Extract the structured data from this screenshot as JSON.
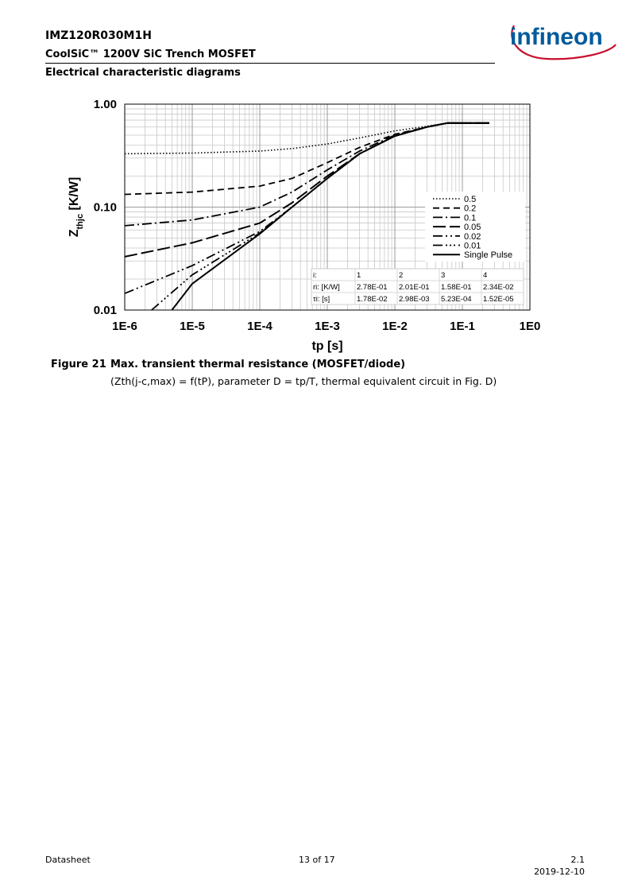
{
  "header": {
    "part_number": "IMZ120R030M1H",
    "product_line": "CoolSiC™ 1200V SiC Trench MOSFET",
    "section": "Electrical characteristic diagrams",
    "logo_text": "infineon",
    "brand_color": "#005a9c",
    "logo_arc_color": "#c8102e"
  },
  "caption": {
    "figure_label": "Figure 21",
    "title": "Max. transient thermal resistance (MOSFET/diode)",
    "subtitle": "(Zth(j-c,max) = f(tP),  parameter D = tp/T, thermal equivalent circuit in Fig. D)"
  },
  "footer": {
    "left": "Datasheet",
    "center": "13 of 17",
    "version": "2.1",
    "date": "2019-12-10"
  },
  "chart_data": {
    "type": "line",
    "xlabel": "tp [s]",
    "ylabel_main": "Z",
    "ylabel_sub": "thjc",
    "ylabel_unit": " [K/W]",
    "x_scale": "log",
    "y_scale": "log",
    "xlim": [
      1e-06,
      1
    ],
    "ylim": [
      0.01,
      1
    ],
    "x_ticks": [
      1e-06,
      1e-05,
      0.0001,
      0.001,
      0.01,
      0.1,
      1
    ],
    "x_tick_labels": [
      "1E-6",
      "1E-5",
      "1E-4",
      "1E-3",
      "1E-2",
      "1E-1",
      "1E0"
    ],
    "y_ticks": [
      0.01,
      0.1,
      1
    ],
    "y_tick_labels": [
      "0.01",
      "0.10",
      "1.00"
    ],
    "grid": true,
    "legend_position": "right",
    "series": [
      {
        "name": "0.5",
        "dash": "1.5,2.5",
        "width": 1.6,
        "points": [
          [
            1e-06,
            0.33
          ],
          [
            1e-05,
            0.335
          ],
          [
            0.0001,
            0.35
          ],
          [
            0.0003,
            0.37
          ],
          [
            0.001,
            0.41
          ],
          [
            0.003,
            0.47
          ],
          [
            0.01,
            0.55
          ],
          [
            0.03,
            0.61
          ],
          [
            0.06,
            0.655
          ],
          [
            0.25,
            0.655
          ]
        ]
      },
      {
        "name": "0.2",
        "dash": "8,5",
        "width": 1.8,
        "points": [
          [
            1e-06,
            0.133
          ],
          [
            1e-05,
            0.14
          ],
          [
            0.0001,
            0.16
          ],
          [
            0.0003,
            0.19
          ],
          [
            0.001,
            0.27
          ],
          [
            0.003,
            0.38
          ],
          [
            0.01,
            0.51
          ],
          [
            0.03,
            0.6
          ],
          [
            0.06,
            0.655
          ],
          [
            0.25,
            0.655
          ]
        ]
      },
      {
        "name": "0.1",
        "dash": "12,4,2,4",
        "width": 1.8,
        "points": [
          [
            1e-06,
            0.066
          ],
          [
            1e-05,
            0.075
          ],
          [
            0.0001,
            0.1
          ],
          [
            0.0003,
            0.14
          ],
          [
            0.001,
            0.23
          ],
          [
            0.003,
            0.35
          ],
          [
            0.01,
            0.5
          ],
          [
            0.03,
            0.6
          ],
          [
            0.06,
            0.655
          ],
          [
            0.25,
            0.655
          ]
        ]
      },
      {
        "name": "0.05",
        "dash": "16,5",
        "width": 2,
        "points": [
          [
            1e-06,
            0.033
          ],
          [
            1e-05,
            0.045
          ],
          [
            0.0001,
            0.07
          ],
          [
            0.0003,
            0.11
          ],
          [
            0.001,
            0.2
          ],
          [
            0.003,
            0.33
          ],
          [
            0.01,
            0.49
          ],
          [
            0.03,
            0.6
          ],
          [
            0.06,
            0.655
          ],
          [
            0.25,
            0.655
          ]
        ]
      },
      {
        "name": "0.02",
        "dash": "12,4,2,4,2,4",
        "width": 1.8,
        "points": [
          [
            1e-06,
            0.0145
          ],
          [
            1e-05,
            0.027
          ],
          [
            0.0001,
            0.058
          ],
          [
            0.0003,
            0.1
          ],
          [
            0.001,
            0.19
          ],
          [
            0.003,
            0.33
          ],
          [
            0.01,
            0.49
          ],
          [
            0.03,
            0.6
          ],
          [
            0.06,
            0.655
          ],
          [
            0.25,
            0.655
          ]
        ]
      },
      {
        "name": "0.01",
        "dash": "12,4,2,3,2,3,2,4",
        "width": 1.8,
        "points": [
          [
            2.5e-06,
            0.01
          ],
          [
            1e-05,
            0.022
          ],
          [
            0.0001,
            0.056
          ],
          [
            0.0003,
            0.1
          ],
          [
            0.001,
            0.19
          ],
          [
            0.003,
            0.33
          ],
          [
            0.01,
            0.49
          ],
          [
            0.03,
            0.6
          ],
          [
            0.06,
            0.655
          ],
          [
            0.25,
            0.655
          ]
        ]
      },
      {
        "name": "Single Pulse",
        "dash": "",
        "width": 2,
        "points": [
          [
            5e-06,
            0.01
          ],
          [
            1e-05,
            0.018
          ],
          [
            0.0001,
            0.055
          ],
          [
            0.0003,
            0.1
          ],
          [
            0.001,
            0.19
          ],
          [
            0.003,
            0.33
          ],
          [
            0.01,
            0.49
          ],
          [
            0.03,
            0.6
          ],
          [
            0.06,
            0.655
          ],
          [
            0.25,
            0.655
          ]
        ]
      }
    ],
    "rc_table": {
      "header": [
        "i:",
        "1",
        "2",
        "3",
        "4"
      ],
      "rows": [
        [
          "ri: [K/W]",
          "2.78E-01",
          "2.01E-01",
          "1.58E-01",
          "2.34E-02"
        ],
        [
          "τi: [s]",
          "1.78E-02",
          "2.98E-03",
          "5.23E-04",
          "1.52E-05"
        ]
      ]
    }
  }
}
